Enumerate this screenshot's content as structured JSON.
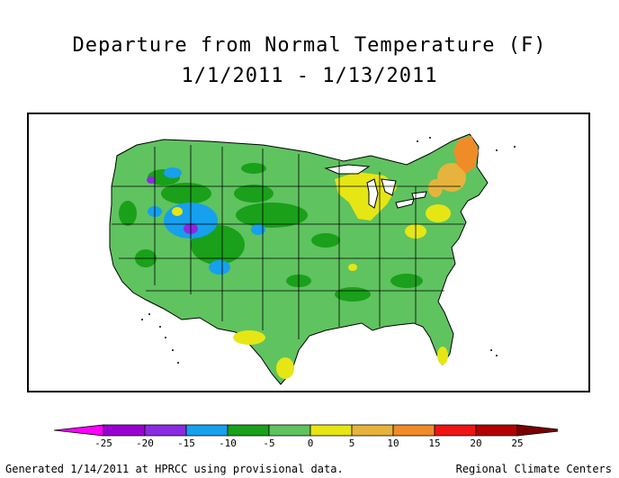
{
  "title": {
    "line1": "Departure from Normal Temperature (F)",
    "line2": "1/1/2011 - 1/13/2011"
  },
  "legend": {
    "units": "F",
    "bins": [
      {
        "from": -25,
        "to": -20,
        "color": "#9a00d2"
      },
      {
        "from": -20,
        "to": -15,
        "color": "#8a2be2"
      },
      {
        "from": -15,
        "to": -10,
        "color": "#16a0ee"
      },
      {
        "from": -10,
        "to": -5,
        "color": "#1aa01a"
      },
      {
        "from": -5,
        "to": 0,
        "color": "#5fc35f"
      },
      {
        "from": 0,
        "to": 5,
        "color": "#e6e614"
      },
      {
        "from": 5,
        "to": 10,
        "color": "#e6b43c"
      },
      {
        "from": 10,
        "to": 15,
        "color": "#f08c28"
      },
      {
        "from": 15,
        "to": 20,
        "color": "#f01414"
      },
      {
        "from": 20,
        "to": 25,
        "color": "#b40000"
      }
    ],
    "below_color": "#ff00ff",
    "above_color": "#780000",
    "tick_labels": [
      "-25",
      "-20",
      "-15",
      "-10",
      "-5",
      "0",
      "5",
      "10",
      "15",
      "20",
      "25"
    ]
  },
  "map": {
    "region": "Contiguous United States",
    "regions": [
      {
        "name": "West coast",
        "value_range": "0 to -5",
        "color": "#5fc35f"
      },
      {
        "name": "Great Basin / Utah",
        "value_range": "-10 to -20",
        "color": "#16a0ee"
      },
      {
        "name": "Northern Plains",
        "value_range": "-5 to -10",
        "color": "#1aa01a"
      },
      {
        "name": "Great Lakes",
        "value_range": "0 to 5",
        "color": "#e6e614"
      },
      {
        "name": "South Texas / Florida",
        "value_range": "0 to 5",
        "color": "#e6e614"
      },
      {
        "name": "Northern New England",
        "value_range": "5 to 15",
        "color": "#f08c28"
      }
    ]
  },
  "footer": {
    "left": "Generated 1/14/2011 at HPRCC using provisional data.",
    "right": "Regional Climate Centers"
  }
}
